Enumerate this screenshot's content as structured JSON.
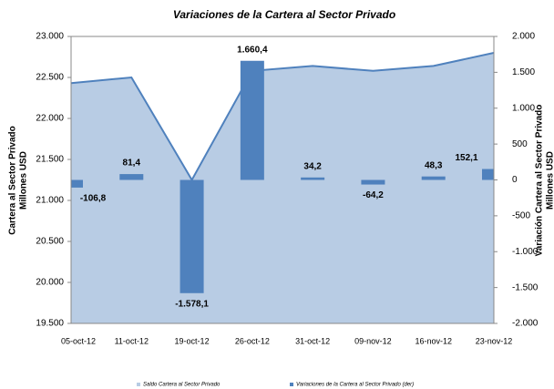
{
  "chart_data": {
    "type": "area_bar",
    "title": "Variaciones de la Cartera al Sector Privado",
    "y_label": [
      "Cartera al Sector Privado",
      "Millones USD"
    ],
    "y2_label": [
      "Variación Cartera al Sector Privado",
      "Millones USD"
    ],
    "categories": [
      "05-oct-12",
      "11-oct-12",
      "19-oct-12",
      "26-oct-12",
      "31-oct-12",
      "09-nov-12",
      "16-nov-12",
      "23-nov-12"
    ],
    "series": [
      {
        "name": "Saldo Cartera al Sector Privado",
        "type": "area",
        "color": "#b8cce4",
        "line_color": "#4f81bd",
        "values": [
          22430,
          22500,
          21250,
          22580,
          22640,
          22580,
          22640,
          22800
        ]
      },
      {
        "name": "Variaciones de la Cartera al Sector Privado (der)",
        "type": "bar",
        "axis": "y2",
        "color": "#4f81bd",
        "values": [
          -106.8,
          81.4,
          -1578.1,
          1660.4,
          34.2,
          -64.2,
          48.3,
          152.1
        ],
        "value_labels": [
          "-106,8",
          "81,4",
          "-1.578,1",
          "1.660,4",
          "34,2",
          "-64,2",
          "48,3",
          "152,1"
        ]
      }
    ],
    "ylim": [
      19500,
      23000
    ],
    "yticks": [
      {
        "value": 19500,
        "label": "19.500"
      },
      {
        "value": 20000,
        "label": "20.000"
      },
      {
        "value": 20500,
        "label": "20.500"
      },
      {
        "value": 21000,
        "label": "21.000"
      },
      {
        "value": 21500,
        "label": "21.500"
      },
      {
        "value": 22000,
        "label": "22.000"
      },
      {
        "value": 22500,
        "label": "22.500"
      },
      {
        "value": 23000,
        "label": "23.000"
      }
    ],
    "y2lim": [
      -2000,
      2000
    ],
    "y2ticks": [
      {
        "value": -2000,
        "label": "-2.000"
      },
      {
        "value": -1500,
        "label": "-1.500"
      },
      {
        "value": -1000,
        "label": "-1.000"
      },
      -500,
      0,
      500,
      {
        "value": 1000,
        "label": "1.000"
      },
      {
        "value": 1500,
        "label": "1.500"
      },
      {
        "value": 2000,
        "label": "2.000"
      }
    ],
    "legend": "bottom"
  }
}
